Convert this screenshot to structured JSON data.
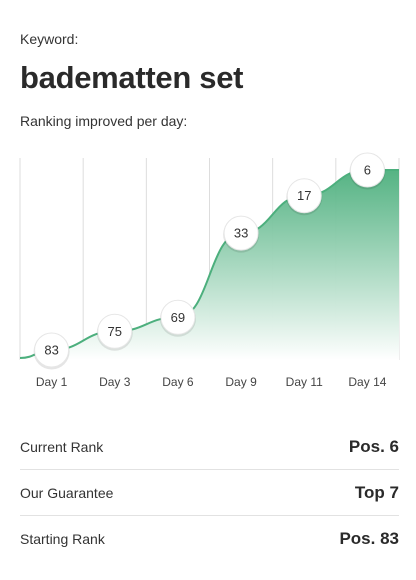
{
  "keyword": {
    "label": "Keyword:",
    "title": "badematten set",
    "subtitle": "Ranking improved per day:"
  },
  "chart_data": {
    "type": "area",
    "title": "",
    "xlabel": "",
    "ylabel": "",
    "categories": [
      "Day 1",
      "Day 3",
      "Day 6",
      "Day 9",
      "Day 11",
      "Day 14"
    ],
    "series": [
      {
        "values": [
          83,
          75,
          69,
          33,
          17,
          6
        ]
      }
    ],
    "ylim": [
      100,
      1
    ],
    "y_inverted": true,
    "grid": true,
    "colors": {
      "line": "#4caf7d",
      "fill_top": "#4caf7d",
      "fill_bottom": "#ffffff",
      "grid": "#dddddd"
    }
  },
  "stats": [
    {
      "label": "Current Rank",
      "value": "Pos. 6"
    },
    {
      "label": "Our Guarantee",
      "value": "Top 7"
    },
    {
      "label": "Starting Rank",
      "value": "Pos. 83"
    }
  ]
}
